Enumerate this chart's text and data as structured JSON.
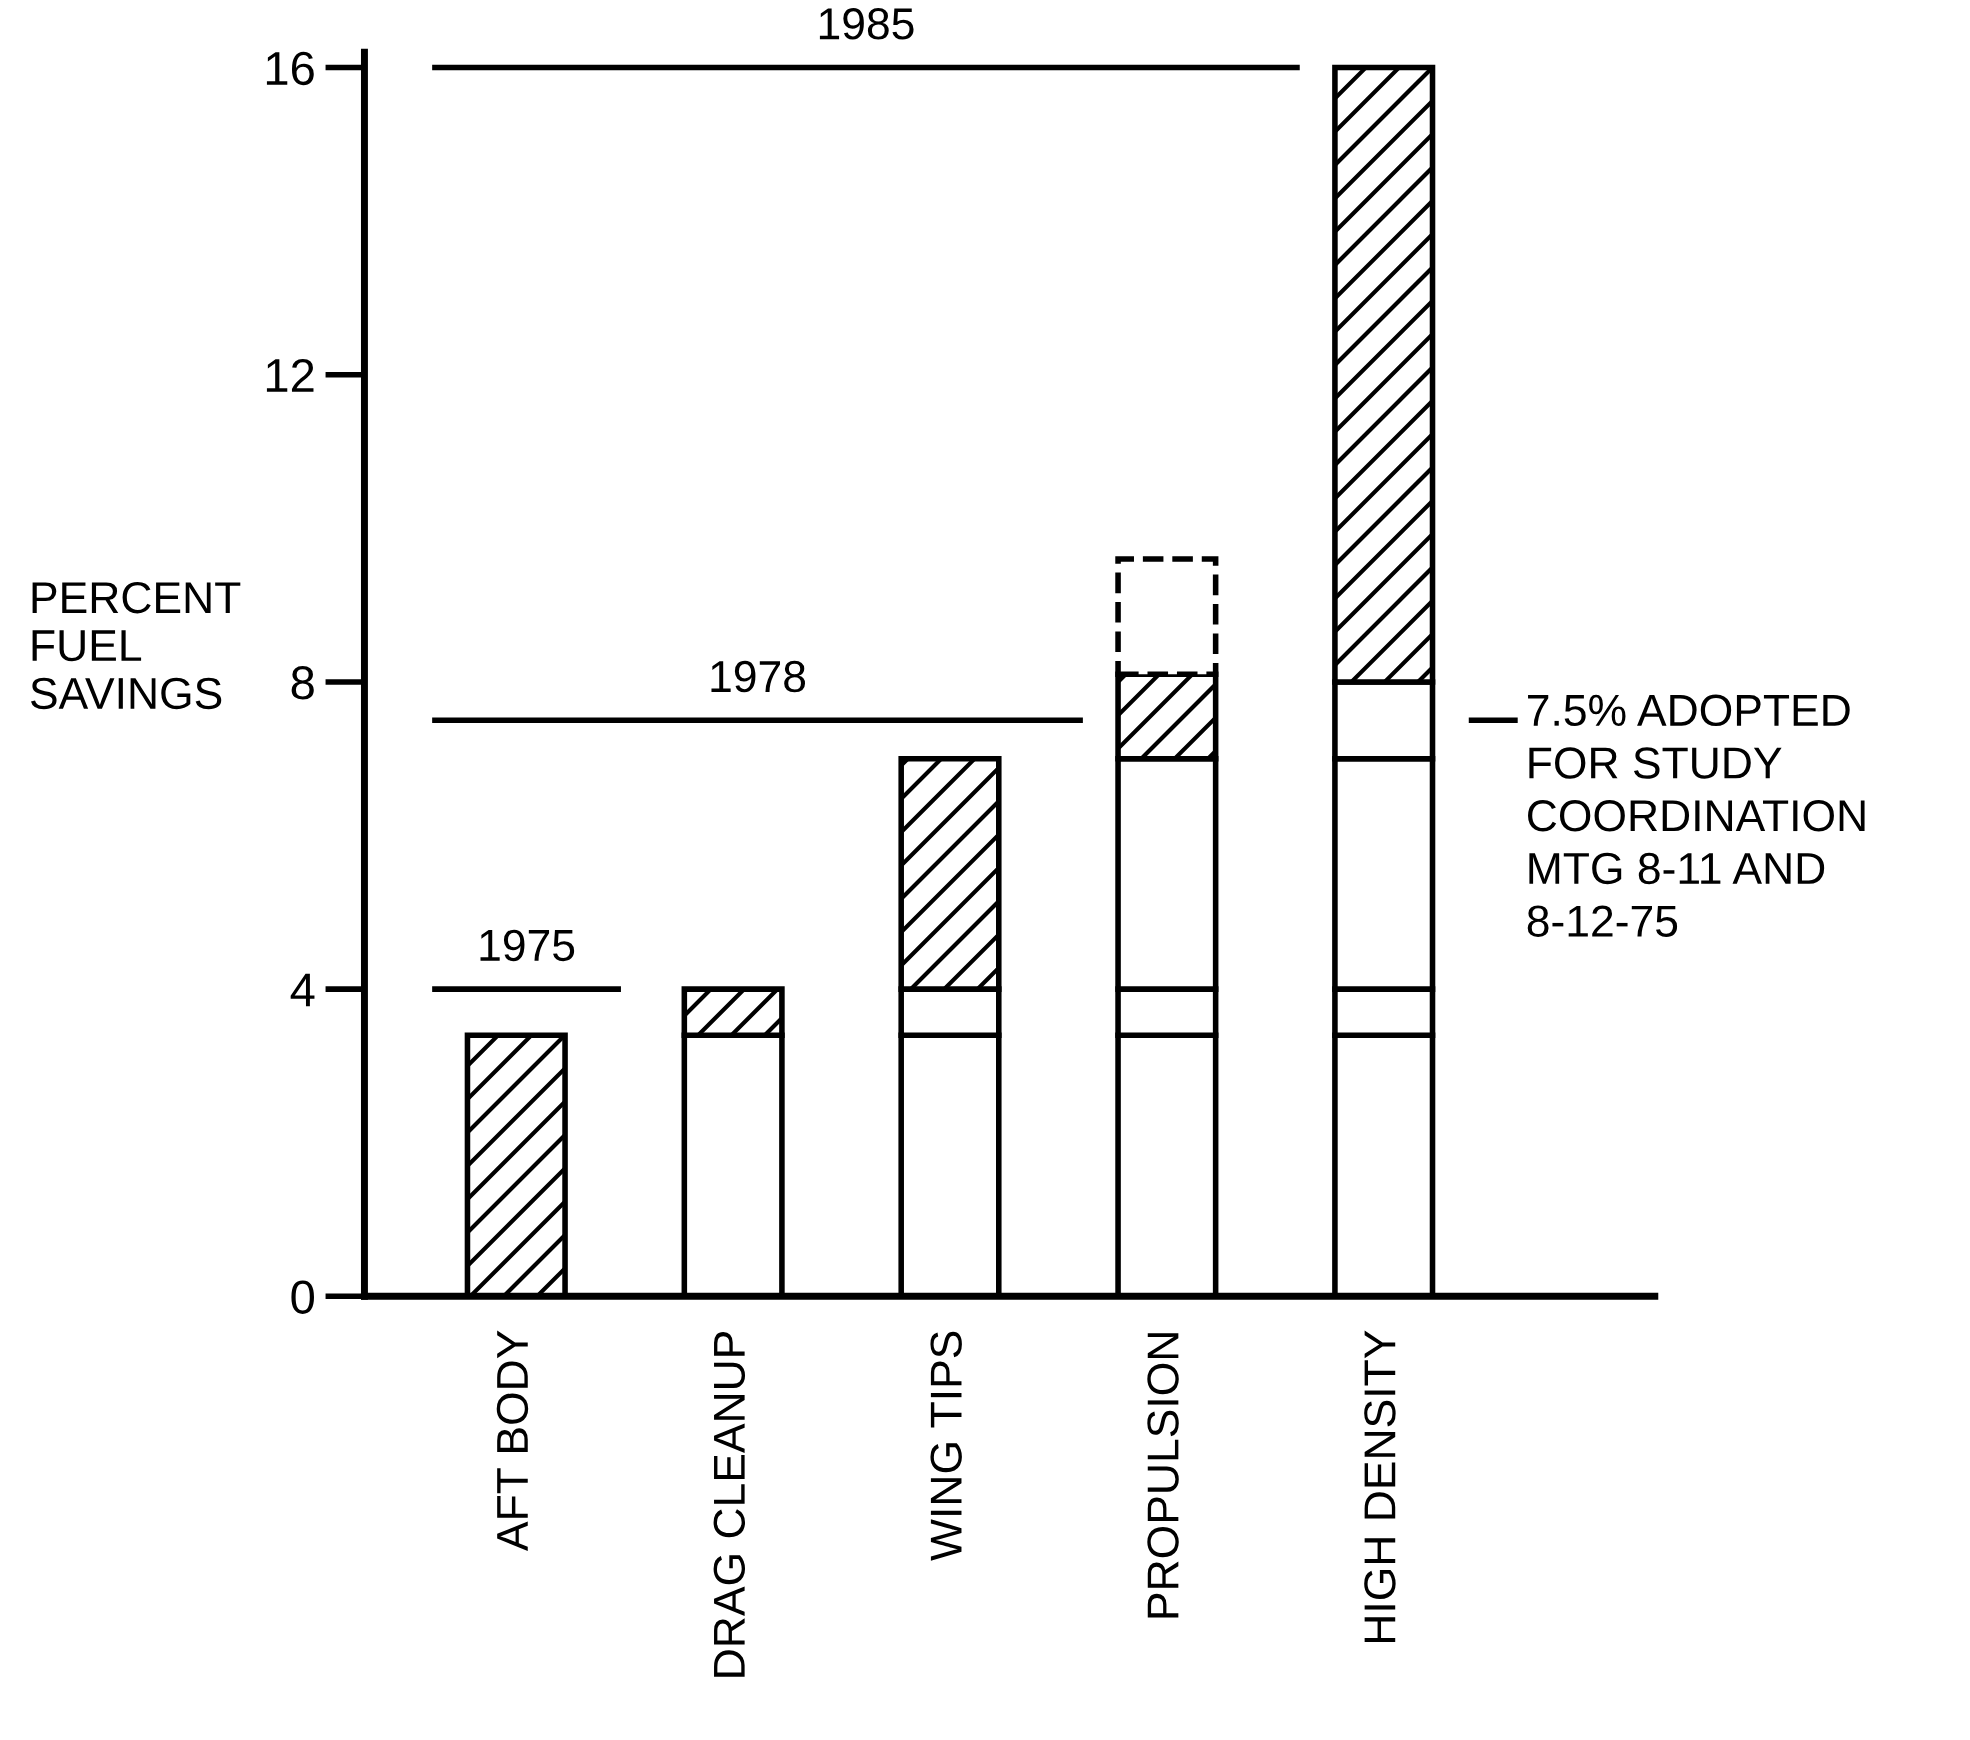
{
  "chart_data": {
    "type": "bar",
    "stacked": true,
    "ylabel": "PERCENT\nFUEL\nSAVINGS",
    "categories": [
      "AFT BODY",
      "DRAG CLEANUP",
      "WING TIPS",
      "PROPULSION",
      "HIGH DENSITY"
    ],
    "series": [
      {
        "colors": [
          "#000000",
          "#ffffff",
          "#ffffff",
          "#ffffff",
          "#ffffff"
        ],
        "values": [
          3.4,
          3.4,
          3.4,
          3.4,
          3.4
        ]
      },
      {
        "colors": [
          null,
          "#000000",
          "#ffffff",
          "#ffffff",
          "#ffffff"
        ],
        "values": [
          null,
          0.6,
          0.6,
          0.6,
          0.6
        ]
      },
      {
        "colors": [
          null,
          null,
          "#000000",
          "#ffffff",
          "#ffffff"
        ],
        "values": [
          null,
          null,
          3.0,
          3.0,
          3.0
        ]
      },
      {
        "colors": [
          null,
          null,
          null,
          "#000000",
          "#ffffff"
        ],
        "values": [
          null,
          null,
          null,
          1.1,
          1.0
        ]
      },
      {
        "colors": [
          null,
          null,
          null,
          null,
          "#000000"
        ],
        "values": [
          null,
          null,
          null,
          null,
          8.0
        ]
      },
      {
        "color": "#ffffff",
        "values": [
          null,
          null,
          null,
          1.5,
          null
        ],
        "line_style": "dashed"
      }
    ],
    "ylim": [
      0,
      16.2
    ],
    "yticks": [
      0,
      4,
      8,
      12,
      16
    ],
    "ref_lines": [
      {
        "axis": "y",
        "value": 4,
        "color": "#000000"
      },
      {
        "axis": "y",
        "value": 7.5,
        "color": "#000000"
      },
      {
        "axis": "y",
        "value": 16,
        "color": "#000000"
      }
    ],
    "annotations": [
      "1975",
      "1978",
      "1985",
      "7.5% ADOPTED\nFOR STUDY\nCOORDINATION\nMTG 8-11 AND\n8-12-75"
    ],
    "grid": false,
    "legend": false
  }
}
